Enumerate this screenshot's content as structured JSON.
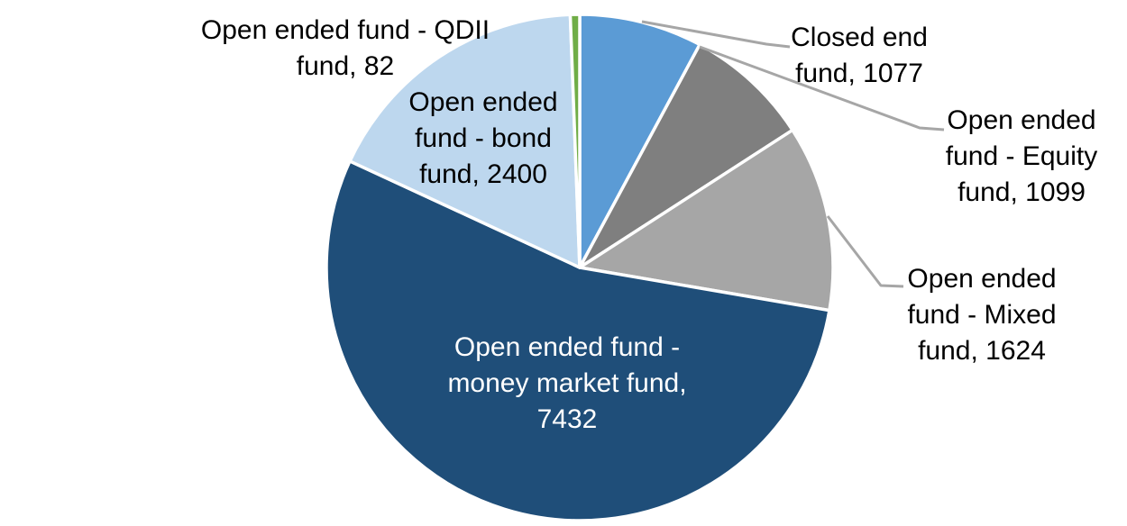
{
  "chart_data": {
    "type": "pie",
    "title": "",
    "legend": "none",
    "start_angle_deg": 0,
    "direction": "clockwise",
    "total": 13714,
    "slices": [
      {
        "name": "Closed end fund",
        "value": 1077,
        "color": "#5B9BD5"
      },
      {
        "name": "Open ended fund - Equity fund",
        "value": 1099,
        "color": "#7F7F7F"
      },
      {
        "name": "Open ended fund - Mixed fund",
        "value": 1624,
        "color": "#A6A6A6"
      },
      {
        "name": "Open ended fund - money market fund",
        "value": 7432,
        "color": "#1F4E79"
      },
      {
        "name": "Open ended fund - bond fund",
        "value": 2400,
        "color": "#BDD7EE"
      },
      {
        "name": "Open ended fund - QDII fund",
        "value": 82,
        "color": "#70AD47"
      }
    ],
    "labels": {
      "closed": [
        "Closed end",
        "fund, 1077"
      ],
      "equity": [
        "Open ended",
        "fund - Equity",
        "fund, 1099"
      ],
      "mixed": [
        "Open ended",
        "fund - Mixed",
        "fund, 1624"
      ],
      "money": [
        "Open ended fund -",
        "money market fund,",
        "7432"
      ],
      "bond": [
        "Open ended",
        "fund - bond",
        "fund, 2400"
      ],
      "qdii": [
        "Open ended fund - QDII",
        "fund, 82"
      ]
    },
    "styles": {
      "slice_border_color": "#FFFFFF",
      "leader_line_color": "#A6A6A6",
      "label_text_color": "#000000",
      "money_market_label_color": "#FFFFFF",
      "background": "#FFFFFF"
    }
  }
}
